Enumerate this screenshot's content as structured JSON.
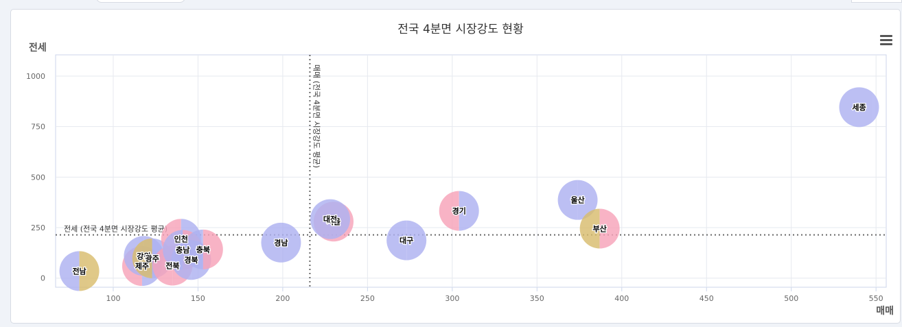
{
  "chart_data": {
    "type": "bubble",
    "title": "전국 4분면 시장강도 현황",
    "xlabel": "매매",
    "ylabel": "전세",
    "xlim": [
      66,
      556
    ],
    "ylim": [
      -45,
      1105
    ],
    "xticks": [
      100,
      150,
      200,
      250,
      300,
      350,
      400,
      450,
      500,
      550
    ],
    "yticks": [
      0,
      250,
      500,
      750,
      1000
    ],
    "grid": true,
    "legend": "none",
    "reference_lines": [
      {
        "axis": "x",
        "value": 216,
        "label": "매매 (전국 4분면 시장강도 평균)"
      },
      {
        "axis": "y",
        "value": 214,
        "label": "전세 (전국 4분면 시장강도 평균)"
      }
    ],
    "points": [
      {
        "name": "전남",
        "x": 80,
        "y": 35,
        "colors": [
          "#aeb2f1",
          "#d9bd6e"
        ]
      },
      {
        "name": "제주",
        "x": 117,
        "y": 60,
        "colors": [
          "#f7a3b9",
          "#aeb2f1"
        ]
      },
      {
        "name": "강원",
        "x": 118,
        "y": 110,
        "colors": [
          "#aeb2f1",
          "#aeb2f1"
        ]
      },
      {
        "name": "광주",
        "x": 123,
        "y": 98,
        "colors": [
          "#d9bd6e",
          "#aeb2f1"
        ]
      },
      {
        "name": "전북",
        "x": 135,
        "y": 62,
        "colors": [
          "#f7a3b9",
          "#f7a3b9"
        ]
      },
      {
        "name": "인천",
        "x": 140,
        "y": 195,
        "colors": [
          "#f7a3b9",
          "#aeb2f1"
        ]
      },
      {
        "name": "충남",
        "x": 141,
        "y": 140,
        "colors": [
          "#aeb2f1",
          "#f7a3b9"
        ]
      },
      {
        "name": "경북",
        "x": 146,
        "y": 90,
        "colors": [
          "#aeb2f1",
          "#aeb2f1"
        ]
      },
      {
        "name": "충북",
        "x": 153,
        "y": 142,
        "colors": [
          "#aeb2f1",
          "#f7a3b9"
        ]
      },
      {
        "name": "경남",
        "x": 199,
        "y": 176,
        "colors": [
          "#aeb2f1",
          "#aeb2f1"
        ]
      },
      {
        "name": "서울",
        "x": 230,
        "y": 280,
        "colors": [
          "#f7a3b9",
          "#f7a3b9"
        ]
      },
      {
        "name": "대전",
        "x": 228,
        "y": 292,
        "colors": [
          "#aeb2f1",
          "#aeb2f1"
        ]
      },
      {
        "name": "대구",
        "x": 273,
        "y": 187,
        "colors": [
          "#aeb2f1",
          "#aeb2f1"
        ]
      },
      {
        "name": "경기",
        "x": 304,
        "y": 333,
        "colors": [
          "#f7a3b9",
          "#aeb2f1"
        ]
      },
      {
        "name": "울산",
        "x": 374,
        "y": 387,
        "colors": [
          "#aeb2f1",
          "#aeb2f1"
        ]
      },
      {
        "name": "부산",
        "x": 387,
        "y": 245,
        "colors": [
          "#d9bd6e",
          "#f7a3b9"
        ]
      },
      {
        "name": "세종",
        "x": 540,
        "y": 846,
        "colors": [
          "#aeb2f1",
          "#aeb2f1"
        ]
      }
    ]
  },
  "colors": {
    "grid": "#e6e9ef",
    "axis": "#ccd6eb",
    "reference": "#666666",
    "title": "#333333",
    "tick": "#666666"
  },
  "menu_icon": "hamburger-menu-icon"
}
